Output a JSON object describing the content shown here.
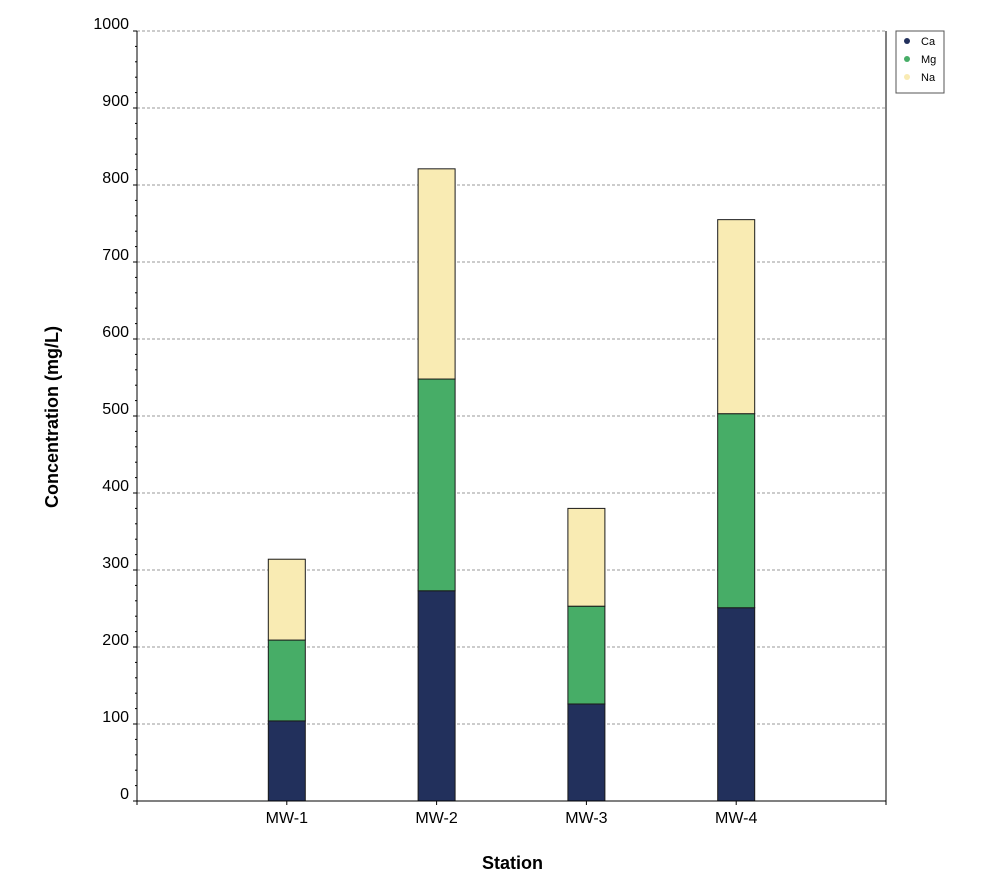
{
  "chart_data": {
    "type": "bar",
    "stacked": true,
    "title": "",
    "xlabel": "Station",
    "ylabel": "Concentration (mg/L)",
    "categories": [
      "MW-1",
      "MW-2",
      "MW-3",
      "MW-4"
    ],
    "series": [
      {
        "name": "Ca",
        "color": "#22305c",
        "values": [
          104,
          273,
          126,
          251
        ]
      },
      {
        "name": "Mg",
        "color": "#47ad67",
        "values": [
          105,
          275,
          127,
          252
        ]
      },
      {
        "name": "Na",
        "color": "#f9ebb3",
        "values": [
          105,
          273,
          127,
          252
        ]
      }
    ],
    "ylim": [
      0,
      1000
    ],
    "yticks": [
      0,
      100,
      200,
      300,
      400,
      500,
      600,
      700,
      800,
      900,
      1000
    ],
    "grid": true,
    "legend_position": "top-right"
  }
}
